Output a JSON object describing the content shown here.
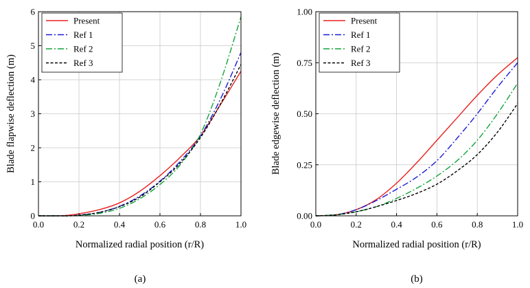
{
  "colors": {
    "present": "#e8211f",
    "ref1": "#1a1ad6",
    "ref2": "#12a33a",
    "ref3": "#000000",
    "grid": "#c8c8c8"
  },
  "chart_data": [
    {
      "type": "line",
      "caption": "(a)",
      "xlabel": "Normalized radial position (r/R)",
      "ylabel": "Blade flapwise deflection (m)",
      "xlim": [
        0.0,
        1.0
      ],
      "ylim": [
        0,
        6
      ],
      "xticks": [
        "0.0",
        "0.2",
        "0.4",
        "0.6",
        "0.8",
        "1.0"
      ],
      "yticks": [
        "0",
        "1",
        "2",
        "3",
        "4",
        "5",
        "6"
      ],
      "xtick_values": [
        0.0,
        0.2,
        0.4,
        0.6,
        0.8,
        1.0
      ],
      "ytick_values": [
        0,
        1,
        2,
        3,
        4,
        5,
        6
      ],
      "grid": true,
      "legend_position": "top-left",
      "series": [
        {
          "name": "Present",
          "style": "solid",
          "color_key": "present",
          "x": [
            0,
            0.1,
            0.15,
            0.2,
            0.3,
            0.4,
            0.5,
            0.6,
            0.7,
            0.8,
            0.9,
            1.0
          ],
          "y": [
            0,
            0,
            0.02,
            0.06,
            0.18,
            0.38,
            0.72,
            1.18,
            1.72,
            2.35,
            3.28,
            4.25
          ]
        },
        {
          "name": "Ref 1",
          "style": "dashdot",
          "color_key": "ref1",
          "x": [
            0,
            0.1,
            0.15,
            0.2,
            0.3,
            0.4,
            0.5,
            0.6,
            0.7,
            0.8,
            0.9,
            1.0
          ],
          "y": [
            0,
            0,
            0,
            0.02,
            0.1,
            0.28,
            0.58,
            1.02,
            1.6,
            2.35,
            3.45,
            4.8
          ]
        },
        {
          "name": "Ref 2",
          "style": "dashdot",
          "color_key": "ref2",
          "x": [
            0,
            0.1,
            0.15,
            0.2,
            0.3,
            0.4,
            0.5,
            0.6,
            0.7,
            0.8,
            0.9,
            1.0
          ],
          "y": [
            0,
            0,
            0,
            0.01,
            0.07,
            0.22,
            0.5,
            0.92,
            1.5,
            2.4,
            3.95,
            5.85
          ]
        },
        {
          "name": "Ref 3",
          "style": "dashed",
          "color_key": "ref3",
          "x": [
            0,
            0.1,
            0.15,
            0.2,
            0.3,
            0.4,
            0.5,
            0.6,
            0.7,
            0.8,
            0.9,
            1.0
          ],
          "y": [
            0,
            0,
            0,
            0.02,
            0.1,
            0.27,
            0.55,
            1.0,
            1.55,
            2.3,
            3.3,
            4.45
          ]
        }
      ]
    },
    {
      "type": "line",
      "caption": "(b)",
      "xlabel": "Normalized radial position (r/R)",
      "ylabel": "Blade edgewise deflection (m)",
      "xlim": [
        0.0,
        1.0
      ],
      "ylim": [
        0,
        1.0
      ],
      "xticks": [
        "0.0",
        "0.2",
        "0.4",
        "0.6",
        "0.8",
        "1.0"
      ],
      "yticks": [
        "0.00",
        "0.25",
        "0.50",
        "0.75",
        "1.00"
      ],
      "xtick_values": [
        0.0,
        0.2,
        0.4,
        0.6,
        0.8,
        1.0
      ],
      "ytick_values": [
        0,
        0.25,
        0.5,
        0.75,
        1.0
      ],
      "grid": true,
      "legend_position": "top-left",
      "series": [
        {
          "name": "Present",
          "style": "solid",
          "color_key": "present",
          "x": [
            0,
            0.1,
            0.2,
            0.3,
            0.4,
            0.5,
            0.6,
            0.7,
            0.8,
            0.9,
            1.0
          ],
          "y": [
            0,
            0.005,
            0.03,
            0.08,
            0.16,
            0.26,
            0.37,
            0.48,
            0.59,
            0.69,
            0.775
          ]
        },
        {
          "name": "Ref 1",
          "style": "dashdot",
          "color_key": "ref1",
          "x": [
            0,
            0.1,
            0.2,
            0.3,
            0.4,
            0.5,
            0.6,
            0.7,
            0.8,
            0.9,
            1.0
          ],
          "y": [
            0,
            0.005,
            0.03,
            0.075,
            0.13,
            0.19,
            0.27,
            0.38,
            0.5,
            0.63,
            0.75
          ]
        },
        {
          "name": "Ref 2",
          "style": "dashdot",
          "color_key": "ref2",
          "x": [
            0,
            0.1,
            0.2,
            0.3,
            0.4,
            0.5,
            0.6,
            0.7,
            0.8,
            0.9,
            1.0
          ],
          "y": [
            0,
            0.005,
            0.02,
            0.045,
            0.085,
            0.135,
            0.195,
            0.27,
            0.37,
            0.5,
            0.65
          ]
        },
        {
          "name": "Ref 3",
          "style": "dashed",
          "color_key": "ref3",
          "x": [
            0,
            0.1,
            0.2,
            0.3,
            0.4,
            0.5,
            0.6,
            0.7,
            0.8,
            0.9,
            1.0
          ],
          "y": [
            0,
            0.005,
            0.02,
            0.045,
            0.075,
            0.11,
            0.155,
            0.22,
            0.3,
            0.41,
            0.55
          ]
        }
      ]
    }
  ]
}
